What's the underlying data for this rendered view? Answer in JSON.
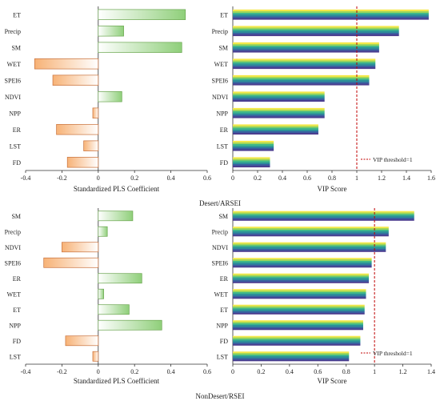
{
  "captions": [
    "Desert/ARSEI",
    "NonDesert/RSEI"
  ],
  "colors": {
    "pls_positive": [
      "#ffffff",
      "#8fcf7a"
    ],
    "pls_negative": [
      "#f7b276",
      "#ffffff"
    ],
    "pls_positive_stroke": "#6aa54f",
    "pls_negative_stroke": "#c8703a",
    "vip_bar_stripes": [
      "#f4e84b",
      "#9fd65a",
      "#3fb88a",
      "#2c8f99",
      "#3a5fa0",
      "#4a3d8f"
    ],
    "threshold_line": "#c00000",
    "axis": "#333333"
  },
  "chart_data": [
    {
      "type": "bar",
      "orientation": "horizontal",
      "panel": "desert-pls",
      "categories": [
        "ET",
        "Precip",
        "SM",
        "WET",
        "SPEI6",
        "NDVI",
        "NPP",
        "ER",
        "LST",
        "FD"
      ],
      "values": [
        0.48,
        0.14,
        0.46,
        -0.35,
        -0.25,
        0.13,
        -0.03,
        -0.23,
        -0.08,
        -0.17
      ],
      "xlabel": "Standardized PLS Coefficient",
      "xlim": [
        -0.4,
        0.6
      ],
      "xticks": [
        "-0.4",
        "-0.2",
        "0",
        "0.2",
        "0.4",
        "0.6"
      ]
    },
    {
      "type": "bar",
      "orientation": "horizontal",
      "panel": "desert-vip",
      "categories": [
        "ET",
        "Precip",
        "SM",
        "WET",
        "SPEI6",
        "NDVI",
        "NPP",
        "ER",
        "LST",
        "FD"
      ],
      "values": [
        1.58,
        1.34,
        1.18,
        1.15,
        1.1,
        0.74,
        0.74,
        0.69,
        0.33,
        0.3
      ],
      "xlabel": "VIP Score",
      "xlim": [
        0,
        1.6
      ],
      "xticks": [
        "0",
        "0.2",
        "0.4",
        "0.6",
        "0.8",
        "1",
        "1.2",
        "1.4",
        "1.6"
      ],
      "threshold": 1,
      "legend": "VIP threshold=1",
      "legend_position": "bottom-right"
    },
    {
      "type": "bar",
      "orientation": "horizontal",
      "panel": "nondesert-pls",
      "categories": [
        "SM",
        "Precip",
        "NDVI",
        "SPEI6",
        "ER",
        "WET",
        "ET",
        "NPP",
        "FD",
        "LST"
      ],
      "values": [
        0.19,
        0.05,
        -0.2,
        -0.3,
        0.24,
        0.03,
        0.17,
        0.35,
        -0.18,
        -0.03
      ],
      "xlabel": "Standardized PLS Coefficient",
      "xlim": [
        -0.4,
        0.6
      ],
      "xticks": [
        "-0.4",
        "-0.2",
        "0",
        "0.2",
        "0.4",
        "0.6"
      ]
    },
    {
      "type": "bar",
      "orientation": "horizontal",
      "panel": "nondesert-vip",
      "categories": [
        "SM",
        "Precip",
        "NDVI",
        "SPEI6",
        "ER",
        "WET",
        "ET",
        "NPP",
        "FD",
        "LST"
      ],
      "values": [
        1.28,
        1.1,
        1.08,
        0.98,
        0.96,
        0.94,
        0.93,
        0.92,
        0.9,
        0.82
      ],
      "xlabel": "VIP Score",
      "xlim": [
        0,
        1.4
      ],
      "xticks": [
        "0",
        "0.2",
        "0.4",
        "0.6",
        "0.8",
        "1",
        "1.2",
        "1.4"
      ],
      "threshold": 1,
      "legend": "VIP threshold=1",
      "legend_position": "bottom-right"
    }
  ]
}
